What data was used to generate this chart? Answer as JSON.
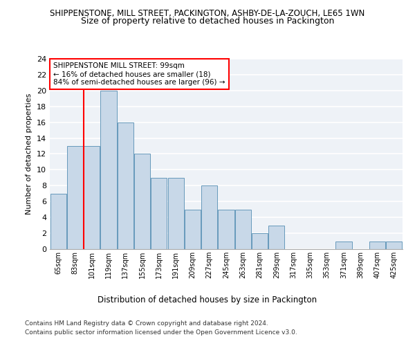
{
  "title": "SHIPPENSTONE, MILL STREET, PACKINGTON, ASHBY-DE-LA-ZOUCH, LE65 1WN",
  "subtitle": "Size of property relative to detached houses in Packington",
  "xlabel": "Distribution of detached houses by size in Packington",
  "ylabel": "Number of detached properties",
  "categories": [
    "65sqm",
    "83sqm",
    "101sqm",
    "119sqm",
    "137sqm",
    "155sqm",
    "173sqm",
    "191sqm",
    "209sqm",
    "227sqm",
    "245sqm",
    "263sqm",
    "281sqm",
    "299sqm",
    "317sqm",
    "335sqm",
    "353sqm",
    "371sqm",
    "389sqm",
    "407sqm",
    "425sqm"
  ],
  "values": [
    7,
    13,
    13,
    20,
    16,
    12,
    9,
    9,
    5,
    8,
    5,
    5,
    2,
    3,
    0,
    0,
    0,
    1,
    0,
    1,
    1
  ],
  "bar_color": "#c8d8e8",
  "bar_edge_color": "#6699bb",
  "vline_index": 2,
  "vline_color": "red",
  "annotation_text": "SHIPPENSTONE MILL STREET: 99sqm\n← 16% of detached houses are smaller (18)\n84% of semi-detached houses are larger (96) →",
  "annotation_box_color": "white",
  "annotation_box_edge": "red",
  "ylim": [
    0,
    24
  ],
  "yticks": [
    0,
    2,
    4,
    6,
    8,
    10,
    12,
    14,
    16,
    18,
    20,
    22,
    24
  ],
  "background_color": "#eef2f7",
  "grid_color": "white",
  "footer1": "Contains HM Land Registry data © Crown copyright and database right 2024.",
  "footer2": "Contains public sector information licensed under the Open Government Licence v3.0."
}
